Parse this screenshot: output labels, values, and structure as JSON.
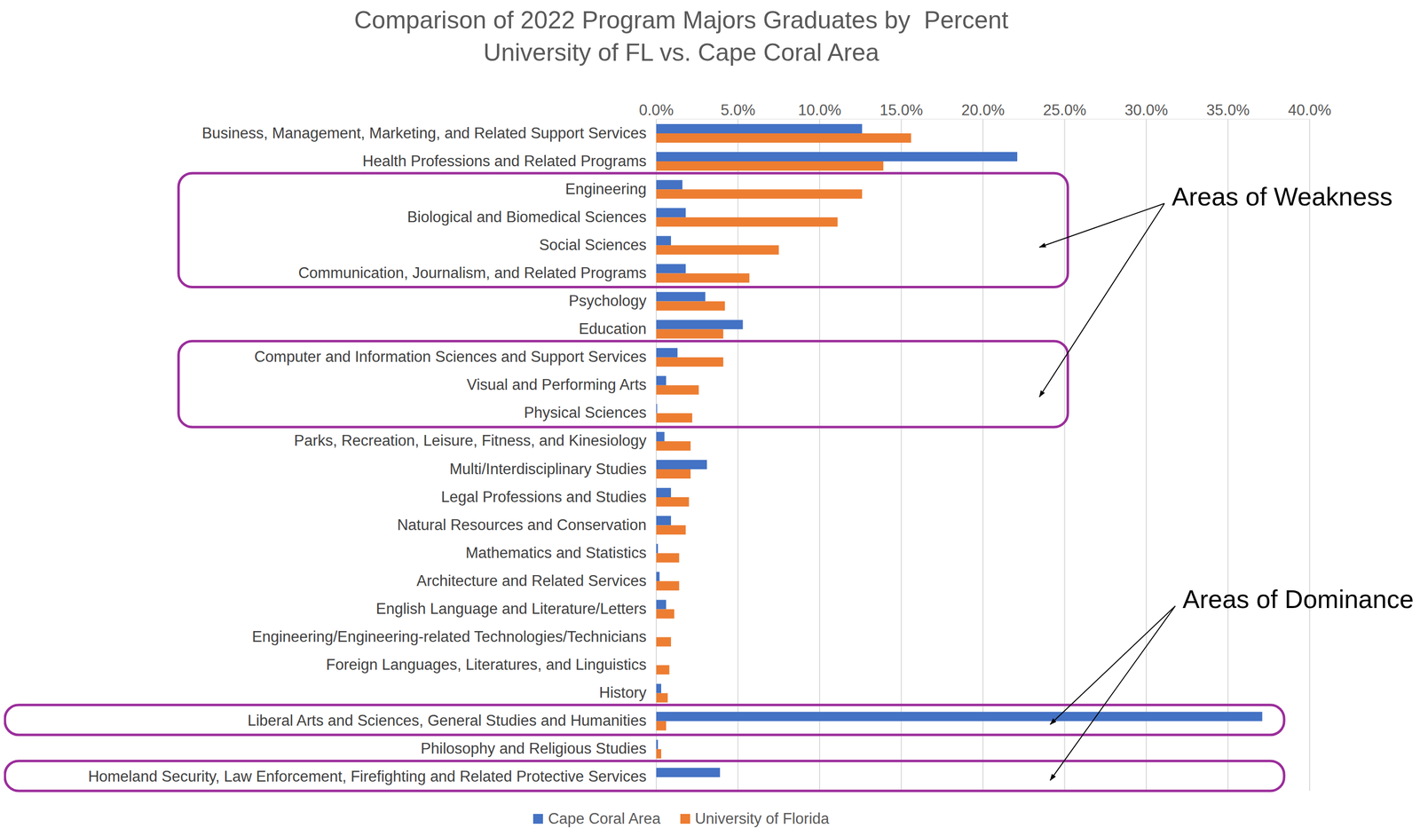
{
  "chart_data": {
    "type": "bar",
    "orientation": "horizontal",
    "title": "Comparison of 2022 Program Majors Graduates by  Percent",
    "subtitle": "University of FL vs. Cape Coral Area",
    "categories": [
      "Business, Management, Marketing, and Related Support Services",
      "Health Professions and Related Programs",
      "Engineering",
      "Biological and Biomedical Sciences",
      "Social Sciences",
      "Communication, Journalism, and Related Programs",
      "Psychology",
      "Education",
      "Computer and Information Sciences and Support Services",
      "Visual and Performing Arts",
      "Physical Sciences",
      "Parks, Recreation, Leisure, Fitness, and Kinesiology",
      "Multi/Interdisciplinary Studies",
      "Legal Professions and Studies",
      "Natural Resources and Conservation",
      "Mathematics and Statistics",
      "Architecture and Related Services",
      "English Language and Literature/Letters",
      "Engineering/Engineering-related Technologies/Technicians",
      "Foreign Languages, Literatures, and Linguistics",
      "History",
      "Liberal Arts and Sciences, General Studies and Humanities",
      "Philosophy and Religious Studies",
      "Homeland Security, Law Enforcement, Firefighting and Related Protective Services"
    ],
    "series": [
      {
        "name": "Cape Coral Area",
        "color": "#4472C4",
        "values": [
          12.6,
          22.1,
          1.6,
          1.8,
          0.9,
          1.8,
          3.0,
          5.3,
          1.3,
          0.6,
          0.05,
          0.5,
          3.1,
          0.9,
          0.9,
          0.1,
          0.2,
          0.6,
          0,
          0,
          0.3,
          37.1,
          0.1,
          3.9
        ]
      },
      {
        "name": "University of Florida",
        "color": "#ED7D31",
        "values": [
          15.6,
          13.9,
          12.6,
          11.1,
          7.5,
          5.7,
          4.2,
          4.1,
          4.1,
          2.6,
          2.2,
          2.1,
          2.1,
          2.0,
          1.8,
          1.4,
          1.4,
          1.1,
          0.9,
          0.8,
          0.7,
          0.6,
          0.3,
          0
        ]
      }
    ],
    "xlim": [
      0,
      40
    ],
    "xticks": [
      {
        "value": 0,
        "label": "0.0%"
      },
      {
        "value": 5,
        "label": "5.0%"
      },
      {
        "value": 10,
        "label": "10.0%"
      },
      {
        "value": 15,
        "label": "15.0%"
      },
      {
        "value": 20,
        "label": "20.0%"
      },
      {
        "value": 25,
        "label": "25.0%"
      },
      {
        "value": 30,
        "label": "30.0%"
      },
      {
        "value": 35,
        "label": "35.0%"
      },
      {
        "value": 40,
        "label": "40.0%"
      }
    ],
    "grid": true,
    "legend": "bottom",
    "annotations": [
      {
        "text": "Areas of Weakness",
        "groups": [
          [
            "Engineering",
            "Biological and Biomedical Sciences",
            "Social Sciences",
            "Communication, Journalism, and Related Programs"
          ],
          [
            "Computer and Information Sciences and Support Services",
            "Visual and Performing Arts",
            "Physical Sciences"
          ]
        ]
      },
      {
        "text": "Areas of Dominance",
        "groups": [
          [
            "Liberal Arts and Sciences, General Studies and Humanities"
          ],
          [
            "Homeland Security, Law Enforcement, Firefighting and Related Protective Services"
          ]
        ]
      }
    ]
  }
}
